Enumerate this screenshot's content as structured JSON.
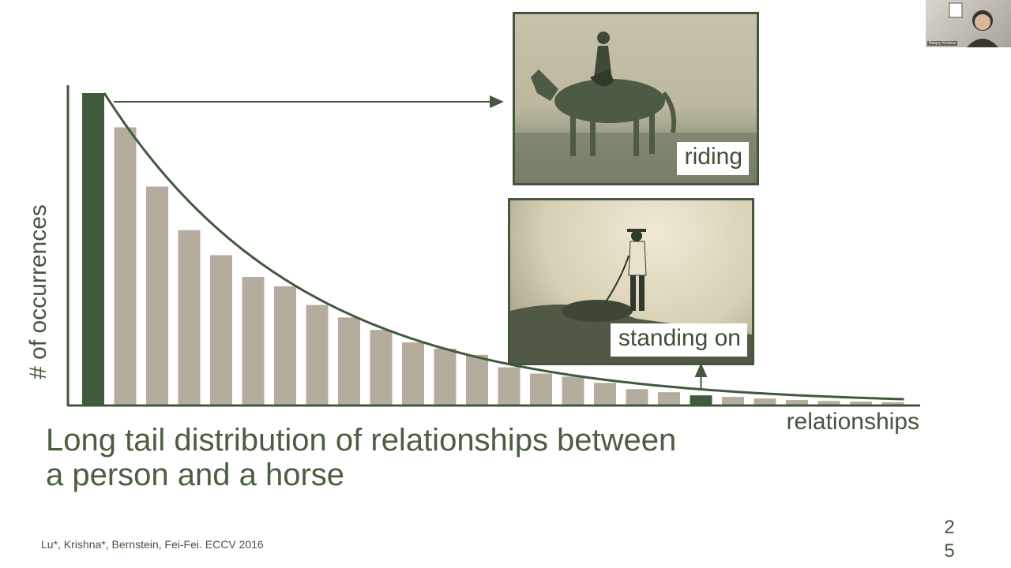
{
  "slide": {
    "title": "Long tail distribution of relationships between a person and a horse",
    "citation": "Lu*, Krishna*, Bernstein, Fei-Fei. ECCV 2016",
    "page_number": "25"
  },
  "photos": {
    "riding": {
      "caption": "riding"
    },
    "standing_on": {
      "caption": "standing on"
    }
  },
  "webcam": {
    "name": "Ranjay Krishna"
  },
  "chart_data": {
    "type": "bar",
    "xlabel": "relationships",
    "ylabel": "# of occurrences",
    "ylim": [
      0,
      100
    ],
    "values": [
      100,
      89,
      70,
      56,
      48,
      41,
      38,
      32,
      28,
      24,
      20,
      18,
      16,
      12,
      10,
      9,
      7,
      5,
      4,
      3,
      2.5,
      2,
      1.5,
      1.2,
      1,
      0.8
    ],
    "highlighted_indices": [
      0,
      19
    ],
    "highlighted_labels": [
      "riding",
      "standing on"
    ],
    "colors": {
      "highlight": "#3f5a3c",
      "bar": "#b6ac9d",
      "axis": "#43573c",
      "curve": "#3f5a3c"
    },
    "trend_curve": "exponential decay fitted to bars",
    "grid": false
  }
}
